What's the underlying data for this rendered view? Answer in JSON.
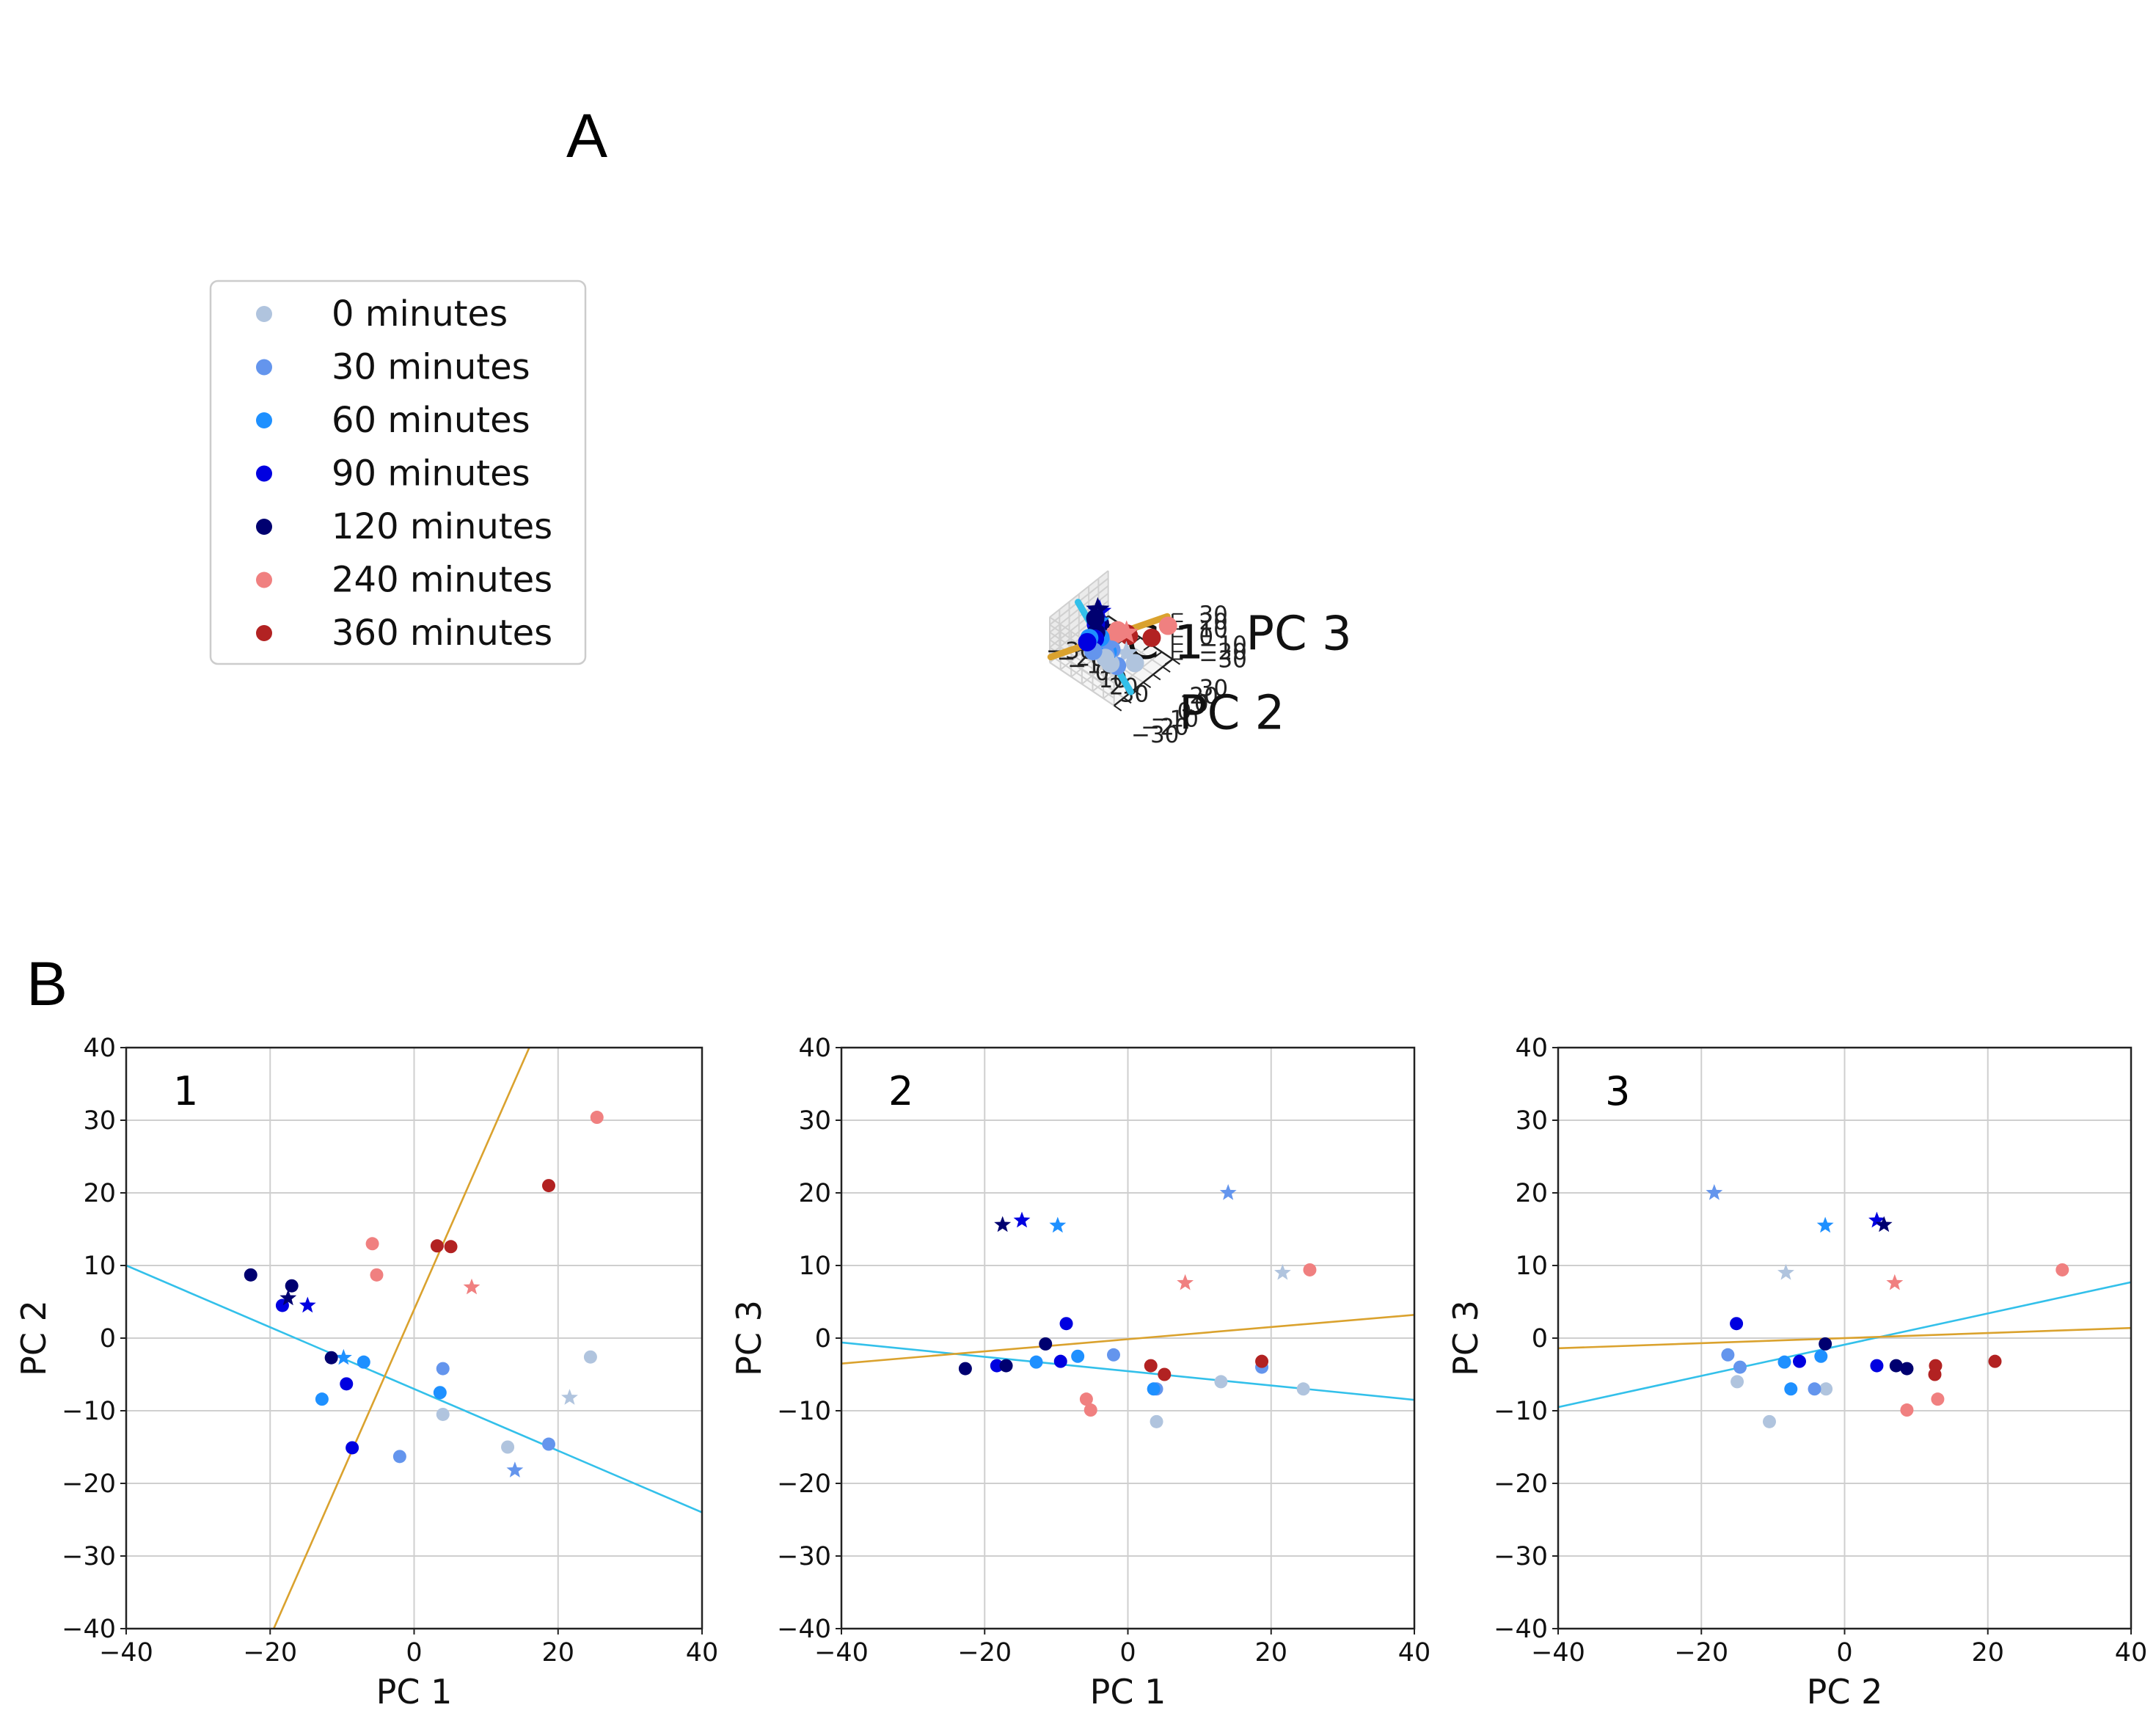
{
  "figure": {
    "panel_a_label": "A",
    "panel_b_label": "B"
  },
  "legend": {
    "entries": [
      {
        "label": "0 minutes",
        "color": "#b0c4de"
      },
      {
        "label": "30 minutes",
        "color": "#6495ed"
      },
      {
        "label": "60 minutes",
        "color": "#1e90ff"
      },
      {
        "label": "90 minutes",
        "color": "#0000e0"
      },
      {
        "label": "120 minutes",
        "color": "#000070"
      },
      {
        "label": "240 minutes",
        "color": "#f08080"
      },
      {
        "label": "360 minutes",
        "color": "#b22222"
      }
    ]
  },
  "line_colors": {
    "pc_line_blue": "#33c0ea",
    "pc_line_gold": "#daa22e"
  },
  "chart_data": [
    {
      "type": "scatter3d",
      "id": "A",
      "xlabel": "PC 1",
      "ylabel": "PC 2",
      "zlabel": "PC 3",
      "xlim": [
        -30,
        30
      ],
      "ylim": [
        -30,
        30
      ],
      "zlim": [
        -30,
        30
      ],
      "x_ticks": [
        "−30",
        "−20",
        "−10",
        "0",
        "10",
        "20",
        "30"
      ],
      "y_ticks": [
        "−30",
        "−20",
        "−10",
        "0",
        "10",
        "20",
        "30"
      ],
      "z_ticks": [
        "−30",
        "−20",
        "−10",
        "0",
        "10",
        "20",
        "30"
      ],
      "points": [
        {
          "pc1": 24.5,
          "pc2": -2.6,
          "pc3": -7.0,
          "group": 0,
          "marker": "circle"
        },
        {
          "pc1": 13.0,
          "pc2": -15.0,
          "pc3": -6.0,
          "group": 0,
          "marker": "circle"
        },
        {
          "pc1": 4.0,
          "pc2": -10.5,
          "pc3": -11.5,
          "group": 0,
          "marker": "circle"
        },
        {
          "pc1": 21.6,
          "pc2": -8.2,
          "pc3": 9.0,
          "group": 0,
          "marker": "star"
        },
        {
          "pc1": 4.0,
          "pc2": -4.2,
          "pc3": -7.0,
          "group": 1,
          "marker": "circle"
        },
        {
          "pc1": -2.0,
          "pc2": -16.3,
          "pc3": -2.3,
          "group": 1,
          "marker": "circle"
        },
        {
          "pc1": 18.7,
          "pc2": -14.6,
          "pc3": -4.0,
          "group": 1,
          "marker": "circle"
        },
        {
          "pc1": 14.0,
          "pc2": -18.2,
          "pc3": 20.0,
          "group": 1,
          "marker": "star"
        },
        {
          "pc1": -7.0,
          "pc2": -3.3,
          "pc3": -2.5,
          "group": 2,
          "marker": "circle"
        },
        {
          "pc1": -12.8,
          "pc2": -8.4,
          "pc3": -3.3,
          "group": 2,
          "marker": "circle"
        },
        {
          "pc1": 3.6,
          "pc2": -7.5,
          "pc3": -7.0,
          "group": 2,
          "marker": "circle"
        },
        {
          "pc1": -9.8,
          "pc2": -2.7,
          "pc3": 15.5,
          "group": 2,
          "marker": "star"
        },
        {
          "pc1": -18.3,
          "pc2": 4.5,
          "pc3": -3.8,
          "group": 3,
          "marker": "circle"
        },
        {
          "pc1": -9.4,
          "pc2": -6.3,
          "pc3": -3.2,
          "group": 3,
          "marker": "circle"
        },
        {
          "pc1": -8.6,
          "pc2": -15.1,
          "pc3": 2.0,
          "group": 3,
          "marker": "circle"
        },
        {
          "pc1": -14.8,
          "pc2": 4.5,
          "pc3": 16.2,
          "group": 3,
          "marker": "star"
        },
        {
          "pc1": -22.7,
          "pc2": 8.7,
          "pc3": -4.2,
          "group": 4,
          "marker": "circle"
        },
        {
          "pc1": -17.0,
          "pc2": 7.2,
          "pc3": -3.8,
          "group": 4,
          "marker": "circle"
        },
        {
          "pc1": -11.5,
          "pc2": -2.7,
          "pc3": -0.8,
          "group": 4,
          "marker": "circle"
        },
        {
          "pc1": -17.5,
          "pc2": 5.5,
          "pc3": 15.6,
          "group": 4,
          "marker": "star"
        },
        {
          "pc1": 25.4,
          "pc2": 30.4,
          "pc3": 9.4,
          "group": 5,
          "marker": "circle"
        },
        {
          "pc1": -5.8,
          "pc2": 13.0,
          "pc3": -8.4,
          "group": 5,
          "marker": "circle"
        },
        {
          "pc1": -5.2,
          "pc2": 8.7,
          "pc3": -9.9,
          "group": 5,
          "marker": "circle"
        },
        {
          "pc1": 8.0,
          "pc2": 7.0,
          "pc3": 7.6,
          "group": 5,
          "marker": "star"
        },
        {
          "pc1": 18.7,
          "pc2": 21.0,
          "pc3": -3.2,
          "group": 6,
          "marker": "circle"
        },
        {
          "pc1": 3.2,
          "pc2": 12.7,
          "pc3": -3.8,
          "group": 6,
          "marker": "circle"
        },
        {
          "pc1": 5.1,
          "pc2": 12.6,
          "pc3": -5.0,
          "group": 6,
          "marker": "circle"
        }
      ],
      "lines": [
        {
          "name": "blue",
          "from": [
            -40,
            10,
            -0.6
          ],
          "to": [
            40,
            -24,
            -8.5
          ]
        },
        {
          "name": "gold",
          "from": [
            -20,
            -40,
            -3.0
          ],
          "to": [
            16,
            40,
            3.0
          ]
        }
      ]
    },
    {
      "type": "scatter",
      "id": "B1",
      "panel_label": "1",
      "x_field": "pc1",
      "y_field": "pc2",
      "xlabel": "PC 1",
      "ylabel": "PC 2",
      "xlim": [
        -40,
        40
      ],
      "ylim": [
        -40,
        40
      ],
      "x_ticks": [
        "−40",
        "−20",
        "0",
        "20",
        "40"
      ],
      "y_ticks": [
        "−40",
        "−30",
        "−20",
        "−10",
        "0",
        "10",
        "20",
        "30",
        "40"
      ],
      "lines": [
        {
          "name": "blue",
          "x": [
            -40,
            40
          ],
          "y": [
            10,
            -24
          ]
        },
        {
          "name": "gold",
          "x": [
            -19.5,
            16
          ],
          "y": [
            -40,
            40
          ]
        }
      ]
    },
    {
      "type": "scatter",
      "id": "B2",
      "panel_label": "2",
      "x_field": "pc1",
      "y_field": "pc3",
      "xlabel": "PC 1",
      "ylabel": "PC 3",
      "xlim": [
        -40,
        40
      ],
      "ylim": [
        -40,
        40
      ],
      "x_ticks": [
        "−40",
        "−20",
        "0",
        "20",
        "40"
      ],
      "y_ticks": [
        "−40",
        "−30",
        "−20",
        "−10",
        "0",
        "10",
        "20",
        "30",
        "40"
      ],
      "lines": [
        {
          "name": "blue",
          "x": [
            -40,
            40
          ],
          "y": [
            -0.6,
            -8.5
          ]
        },
        {
          "name": "gold",
          "x": [
            -40,
            40
          ],
          "y": [
            -3.5,
            3.2
          ]
        }
      ]
    },
    {
      "type": "scatter",
      "id": "B3",
      "panel_label": "3",
      "x_field": "pc2",
      "y_field": "pc3",
      "xlabel": "PC 2",
      "ylabel": "PC 3",
      "xlim": [
        -40,
        40
      ],
      "ylim": [
        -40,
        40
      ],
      "x_ticks": [
        "−40",
        "−20",
        "0",
        "20",
        "40"
      ],
      "y_ticks": [
        "−40",
        "−30",
        "−20",
        "−10",
        "0",
        "10",
        "20",
        "30",
        "40"
      ],
      "lines": [
        {
          "name": "blue",
          "x": [
            -40,
            40
          ],
          "y": [
            -9.5,
            7.7
          ]
        },
        {
          "name": "gold",
          "x": [
            -40,
            40
          ],
          "y": [
            -1.4,
            1.4
          ]
        }
      ]
    }
  ]
}
